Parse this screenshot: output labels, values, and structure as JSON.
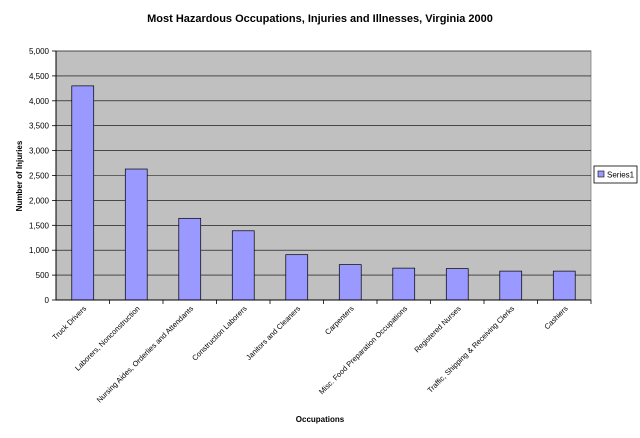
{
  "chart_data": {
    "type": "bar",
    "title": "Most Hazardous Occupations, Injuries and Illnesses, Virginia 2000",
    "xlabel": "Occupations",
    "ylabel": "Number of Injuries",
    "ylim": [
      0,
      5000
    ],
    "yticks": [
      0,
      500,
      1000,
      1500,
      2000,
      2500,
      3000,
      3500,
      4000,
      4500,
      5000
    ],
    "ytick_labels": [
      "0",
      "500",
      "1,000",
      "1,500",
      "2,000",
      "2,500",
      "3,000",
      "3,500",
      "4,000",
      "4,500",
      "5,000"
    ],
    "grid": true,
    "legend": "right",
    "categories": [
      "Truck Drivers",
      "Laborers, Nonconstruction",
      "Nursing Aides, Orderlies and Attendants",
      "Construction Laborers",
      "Janitors and Cleaners",
      "Carpenters",
      "Misc. Food Preparation Occupations",
      "Registered Nurses",
      "Traffic, Shipping & Receiving Clerks",
      "Cashiers"
    ],
    "series": [
      {
        "name": "Series1",
        "values": [
          4300,
          2630,
          1640,
          1390,
          910,
          710,
          640,
          630,
          580,
          580
        ]
      }
    ],
    "colors": {
      "plot_bg": "#c0c0c0",
      "bar_fill": "#9999ff",
      "bar_stroke": "#000000",
      "grid": "#000000"
    }
  }
}
